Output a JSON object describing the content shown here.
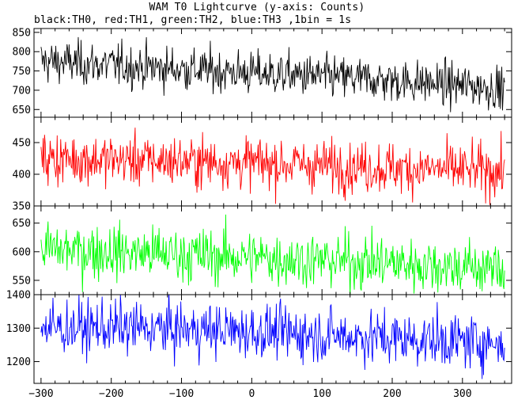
{
  "title": "WAM T0 Lightcurve (y-axis: Counts)",
  "subtitle": "black:TH0, red:TH1, green:TH2, blue:TH3 ,1bin = 1s",
  "chart_data": {
    "type": "line",
    "title": "WAM T0 Lightcurve (y-axis: Counts)",
    "subtitle": "black:TH0, red:TH1, green:TH2, blue:TH3 ,1bin = 1s",
    "bin_seconds": 1,
    "x_range": [
      -300,
      360
    ],
    "xlim": [
      -310,
      370
    ],
    "x_ticks": [
      -300,
      -200,
      -100,
      0,
      100,
      200,
      300
    ],
    "ylabel": "Counts",
    "panels": [
      {
        "name": "TH0",
        "color": "#000000",
        "ylim": [
          630,
          860
        ],
        "y_ticks": [
          650,
          700,
          750,
          800,
          850
        ],
        "trend": [
          [
            -300,
            775
          ],
          [
            -200,
            765
          ],
          [
            0,
            745
          ],
          [
            200,
            725
          ],
          [
            360,
            705
          ]
        ],
        "noise_sd": 28
      },
      {
        "name": "TH1",
        "color": "#ff0000",
        "ylim": [
          350,
          490
        ],
        "y_ticks": [
          350,
          400,
          450
        ],
        "trend": [
          [
            -300,
            425
          ],
          [
            -200,
            423
          ],
          [
            0,
            418
          ],
          [
            200,
            410
          ],
          [
            360,
            405
          ]
        ],
        "noise_sd": 20
      },
      {
        "name": "TH2",
        "color": "#00ff00",
        "ylim": [
          525,
          680
        ],
        "y_ticks": [
          550,
          600,
          650
        ],
        "trend": [
          [
            -300,
            605
          ],
          [
            -200,
            600
          ],
          [
            0,
            590
          ],
          [
            200,
            580
          ],
          [
            360,
            570
          ]
        ],
        "noise_sd": 24
      },
      {
        "name": "TH3",
        "color": "#0000ff",
        "ylim": [
          1135,
          1400
        ],
        "y_ticks": [
          1200,
          1300,
          1400
        ],
        "trend": [
          [
            -300,
            1300
          ],
          [
            -200,
            1302
          ],
          [
            0,
            1290
          ],
          [
            200,
            1270
          ],
          [
            360,
            1255
          ]
        ],
        "noise_sd": 40
      }
    ],
    "grid": false,
    "legend": "text subtitle"
  }
}
